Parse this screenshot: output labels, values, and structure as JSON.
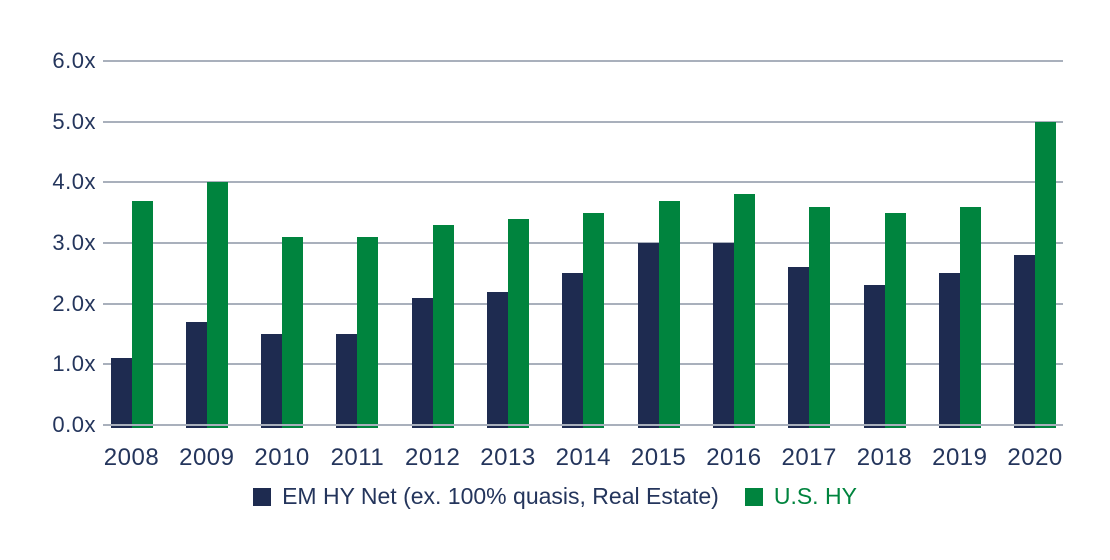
{
  "chart_data": {
    "type": "bar",
    "title": "",
    "categories": [
      "2008",
      "2009",
      "2010",
      "2011",
      "2012",
      "2013",
      "2014",
      "2015",
      "2016",
      "2017",
      "2018",
      "2019",
      "2020"
    ],
    "series": [
      {
        "id": "em-hy-net",
        "name": "EM HY Net (ex. 100% quasis, Real Estate)",
        "color": "#1e2b50",
        "label_color": "#24355c",
        "values": [
          1.1,
          1.7,
          1.5,
          1.5,
          2.1,
          2.2,
          2.5,
          3.0,
          3.0,
          2.6,
          2.3,
          2.5,
          2.8
        ]
      },
      {
        "id": "us-hy",
        "name": "U.S. HY",
        "color": "#00843e",
        "label_color": "#00843e",
        "values": [
          3.7,
          4.0,
          3.1,
          3.1,
          3.3,
          3.4,
          3.5,
          3.7,
          3.8,
          3.6,
          3.5,
          3.6,
          5.0
        ]
      }
    ],
    "xlabel": "",
    "ylabel": "",
    "ylim": [
      0,
      6
    ],
    "y_axis": {
      "min": 0,
      "max": 6,
      "step": 1,
      "tick_suffix": "x",
      "tick_labels": [
        "0.0x",
        "1.0x",
        "2.0x",
        "3.0x",
        "4.0x",
        "5.0x",
        "6.0x"
      ]
    },
    "grid": true,
    "legend_position": "bottom",
    "colors": {
      "grid_line": "#a9b0bc",
      "axis_text": "#24355c",
      "background": "#ffffff"
    }
  }
}
